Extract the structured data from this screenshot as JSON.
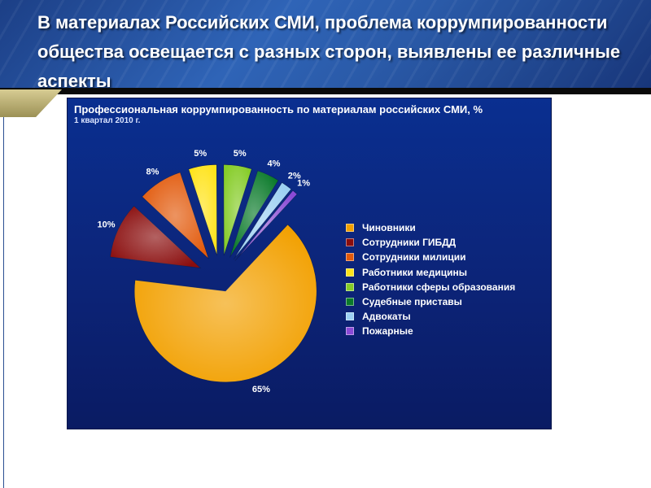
{
  "slide": {
    "title": "В материалах Российских СМИ, проблема коррумпированности общества освещается с разных сторон, выявлены ее различные аспекты"
  },
  "chart_data": {
    "type": "pie",
    "title": "Профессиональная коррумпированность по материалам российских СМИ, %",
    "subtitle": "1 квартал 2010 г.",
    "legend_position": "right",
    "exploded": true,
    "slices": [
      {
        "name": "Чиновники",
        "value": 65,
        "label": "65%",
        "color": "#f2a000"
      },
      {
        "name": "Сотрудники ГИБДД",
        "value": 10,
        "label": "10%",
        "color": "#8a0d0d"
      },
      {
        "name": "Сотрудники милиции",
        "value": 8,
        "label": "8%",
        "color": "#e25a0c"
      },
      {
        "name": "Работники медицины",
        "value": 5,
        "label": "5%",
        "color": "#ffe31a"
      },
      {
        "name": "Работники сферы образования",
        "value": 5,
        "label": "5%",
        "color": "#86cc28"
      },
      {
        "name": "Судебные приставы",
        "value": 4,
        "label": "4%",
        "color": "#0a7a2a"
      },
      {
        "name": "Адвокаты",
        "value": 2,
        "label": "2%",
        "color": "#9cd0f2"
      },
      {
        "name": "Пожарные",
        "value": 1,
        "label": "1%",
        "color": "#8a4ad6"
      }
    ]
  }
}
